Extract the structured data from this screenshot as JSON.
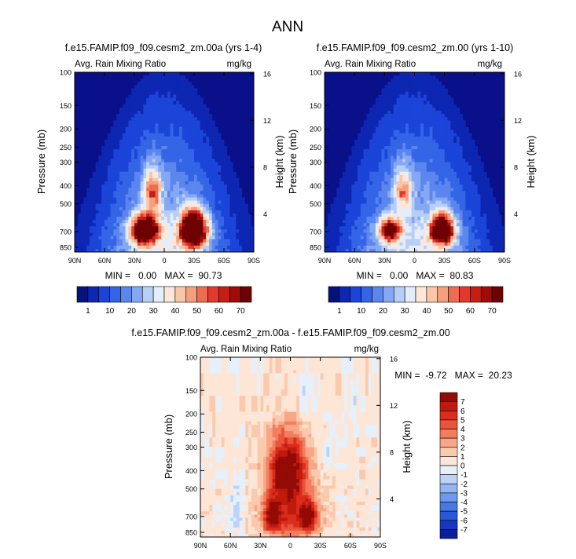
{
  "page_title": "ANN",
  "colors": {
    "plot_background": "#0a0f8a",
    "seq_scale": [
      "#06127c",
      "#0d27b3",
      "#1b45d8",
      "#3465e6",
      "#5b86ee",
      "#86a8f4",
      "#b7cef7",
      "#e4eefb",
      "#fde7d8",
      "#f9c6a8",
      "#f59f7d",
      "#ef6d4f",
      "#e3392c",
      "#c81d14",
      "#9e0c09",
      "#6e0202"
    ],
    "diff_scale": [
      "#06127c",
      "#0a1e9c",
      "#1538c2",
      "#2858db",
      "#4878e6",
      "#6c98ee",
      "#93b6f3",
      "#bcd3f8",
      "#e6f0fb",
      "#fde6d6",
      "#fbcaae",
      "#f7a785",
      "#f27e5e",
      "#e9553b",
      "#da2d1d",
      "#c01a0c",
      "#930a06",
      "#6a0202"
    ]
  },
  "chart_data": [
    {
      "id": "panel-1",
      "type": "heatmap",
      "title": "f.e15.FAMIP.f09_f09.cesm2_zm.00a (yrs 1-4)",
      "subtitle_left": "Avg. Rain Mixing Ratio",
      "subtitle_right": "mg/kg",
      "ylabel": "Pressure (mb)",
      "ylabel_right": "Height (km)",
      "x_ticks": [
        "90N",
        "60N",
        "30N",
        "0",
        "30S",
        "60S",
        "90S"
      ],
      "x_range": [
        90,
        -90
      ],
      "y_ticks": [
        100,
        150,
        200,
        250,
        300,
        400,
        500,
        700,
        850
      ],
      "y_range": [
        100,
        900
      ],
      "height_ticks_km": [
        16,
        12,
        8,
        4
      ],
      "stats": "MIN =   0.00   MAX =  90.73",
      "min": 0.0,
      "max": 90.73,
      "field": {
        "top_height_km": 6.0,
        "edge_height_km": 2.5,
        "cores": [
          {
            "lat": 20,
            "p": 690,
            "amp": 95,
            "dlat": 9,
            "dp": 85
          },
          {
            "lat": -30,
            "p": 690,
            "amp": 115,
            "dlat": 9,
            "dp": 95
          },
          {
            "lat": 12,
            "p": 420,
            "amp": 38,
            "dlat": 6,
            "dp": 80
          }
        ]
      },
      "colorbar": {
        "labels": [
          "1",
          "10",
          "20",
          "30",
          "40",
          "50",
          "60",
          "70"
        ]
      }
    },
    {
      "id": "panel-2",
      "type": "heatmap",
      "title": "f.e15.FAMIP.f09_f09.cesm2_zm.00 (yrs 1-10)",
      "subtitle_left": "Avg. Rain Mixing Ratio",
      "subtitle_right": "mg/kg",
      "ylabel": "Pressure (mb)",
      "ylabel_right": "Height (km)",
      "x_ticks": [
        "90N",
        "60N",
        "30N",
        "0",
        "30S",
        "60S",
        "90S"
      ],
      "x_range": [
        90,
        -90
      ],
      "y_ticks": [
        100,
        150,
        200,
        250,
        300,
        400,
        500,
        700,
        850
      ],
      "y_range": [
        100,
        900
      ],
      "height_ticks_km": [
        16,
        12,
        8,
        4
      ],
      "stats": "MIN =   0.00   MAX =  80.83",
      "min": 0.0,
      "max": 80.83,
      "field": {
        "top_height_km": 6.0,
        "edge_height_km": 2.5,
        "cores": [
          {
            "lat": 25,
            "p": 690,
            "amp": 70,
            "dlat": 7,
            "dp": 70
          },
          {
            "lat": -28,
            "p": 690,
            "amp": 100,
            "dlat": 8,
            "dp": 80
          },
          {
            "lat": 12,
            "p": 420,
            "amp": 32,
            "dlat": 6,
            "dp": 80
          }
        ]
      },
      "colorbar": {
        "labels": [
          "1",
          "10",
          "20",
          "30",
          "40",
          "50",
          "60",
          "70"
        ]
      }
    },
    {
      "id": "panel-diff",
      "type": "heatmap",
      "title": "f.e15.FAMIP.f09_f09.cesm2_zm.00a - f.e15.FAMIP.f09_f09.cesm2_zm.00",
      "subtitle_left": "Avg. Rain Mixing Ratio",
      "subtitle_right": "mg/kg",
      "ylabel": "Pressure (mb)",
      "ylabel_right": "Height (km)",
      "x_ticks": [
        "90N",
        "60N",
        "30N",
        "0",
        "30S",
        "60S",
        "90S"
      ],
      "x_range": [
        90,
        -90
      ],
      "y_ticks": [
        100,
        150,
        200,
        250,
        300,
        400,
        500,
        700,
        850
      ],
      "y_range": [
        100,
        900
      ],
      "height_ticks_km": [
        16,
        12,
        8,
        4
      ],
      "stats": "MIN =  -9.72   MAX =  20.23",
      "min": -9.72,
      "max": 20.23,
      "field": {
        "cores": [
          {
            "lat": 18,
            "p": 700,
            "amp": 7.5,
            "dlat": 7,
            "dp": 110
          },
          {
            "lat": -18,
            "p": 700,
            "amp": 7.5,
            "dlat": 7,
            "dp": 110
          },
          {
            "lat": 12,
            "p": 400,
            "amp": 5.5,
            "dlat": 8,
            "dp": 110
          },
          {
            "lat": -5,
            "p": 400,
            "amp": 5.5,
            "dlat": 9,
            "dp": 110
          },
          {
            "lat": 0,
            "p": 700,
            "amp": 4.0,
            "dlat": 8,
            "dp": 180
          }
        ],
        "neg_cores": [
          {
            "lat": 55,
            "p": 650,
            "amp": -1.2,
            "dlat": 5,
            "dp": 150
          },
          {
            "lat": -40,
            "p": 330,
            "amp": -1.0,
            "dlat": 6,
            "dp": 80
          },
          {
            "lat": -15,
            "p": 180,
            "amp": -0.9,
            "dlat": 5,
            "dp": 40
          },
          {
            "lat": -62,
            "p": 160,
            "amp": -0.8,
            "dlat": 3,
            "dp": 40
          }
        ]
      },
      "colorbar": {
        "labels": [
          "7",
          "6",
          "5",
          "4",
          "3",
          "2",
          "1",
          "0",
          "-1",
          "-2",
          "-3",
          "-4",
          "-5",
          "-6",
          "-7"
        ]
      }
    }
  ]
}
